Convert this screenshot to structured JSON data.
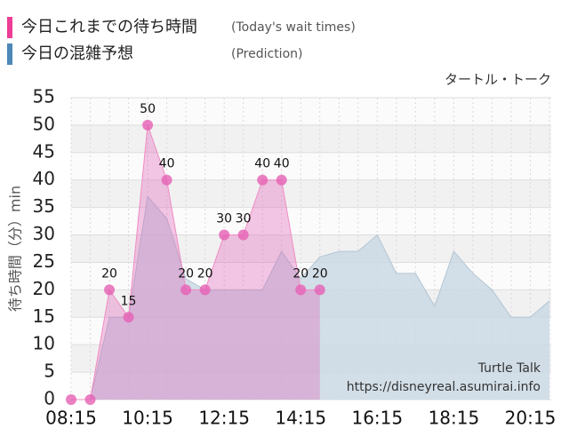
{
  "chart_data": {
    "type": "area",
    "subtitle": "タートル・トーク",
    "y_label": "待ち時間（分）min",
    "annotations": [
      "Turtle Talk",
      "https://disneyreal.asumirai.info"
    ],
    "x": [
      "08:15",
      "08:45",
      "09:15",
      "09:45",
      "10:15",
      "10:45",
      "11:15",
      "11:45",
      "12:15",
      "12:45",
      "13:15",
      "13:45",
      "14:15",
      "14:45",
      "15:15",
      "15:45",
      "16:15",
      "16:45",
      "17:15",
      "17:45",
      "18:15",
      "18:45",
      "19:15",
      "19:45",
      "20:15",
      "20:45"
    ],
    "xtick_every": 4,
    "series": [
      {
        "name": "今日これまでの待ち時間",
        "note": "(Today's wait times)",
        "color": "#ee3d96",
        "values": [
          0,
          0,
          20,
          15,
          50,
          40,
          20,
          20,
          30,
          30,
          40,
          40,
          20,
          20,
          null,
          null,
          null,
          null,
          null,
          null,
          null,
          null,
          null,
          null,
          null,
          null
        ],
        "value_labels": [
          null,
          null,
          "20",
          "15",
          "50",
          "40",
          "20",
          "20",
          "30",
          "30",
          "40",
          "40",
          "20",
          "20",
          null,
          null,
          null,
          null,
          null,
          null,
          null,
          null,
          null,
          null,
          null,
          null
        ]
      },
      {
        "name": "今日の混雑予想",
        "note": "(Prediction)",
        "color": "#4d87b8",
        "values": [
          0,
          0,
          15,
          15,
          37,
          33,
          22,
          20,
          20,
          20,
          20,
          27,
          22,
          26,
          27,
          27,
          30,
          23,
          23,
          17,
          27,
          23,
          20,
          15,
          15,
          18
        ]
      }
    ],
    "ylim": [
      0,
      55
    ],
    "yticks": [
      0,
      5,
      10,
      15,
      20,
      25,
      30,
      35,
      40,
      45,
      50,
      55
    ],
    "grid": true
  }
}
